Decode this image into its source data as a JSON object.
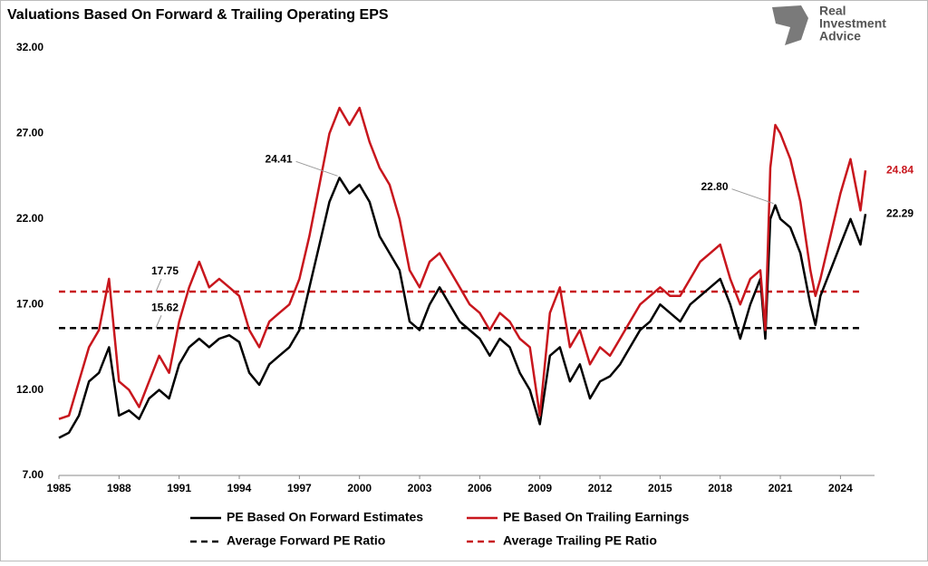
{
  "brand": [
    "Real",
    "Investment",
    "Advice"
  ],
  "chart_data": {
    "type": "line",
    "title": "Valuations  Based On Forward & Trailing Operating EPS",
    "x": [
      1985.0,
      1985.5,
      1986.0,
      1986.5,
      1987.0,
      1987.5,
      1988.0,
      1988.5,
      1989.0,
      1989.5,
      1990.0,
      1990.5,
      1991.0,
      1991.5,
      1992.0,
      1992.5,
      1993.0,
      1993.5,
      1994.0,
      1994.5,
      1995.0,
      1995.5,
      1996.0,
      1996.5,
      1997.0,
      1997.5,
      1998.0,
      1998.5,
      1999.0,
      1999.5,
      2000.0,
      2000.5,
      2001.0,
      2001.5,
      2002.0,
      2002.5,
      2003.0,
      2003.5,
      2004.0,
      2004.5,
      2005.0,
      2005.5,
      2006.0,
      2006.5,
      2007.0,
      2007.5,
      2008.0,
      2008.5,
      2009.0,
      2009.5,
      2010.0,
      2010.5,
      2011.0,
      2011.5,
      2012.0,
      2012.5,
      2013.0,
      2013.5,
      2014.0,
      2014.5,
      2015.0,
      2015.5,
      2016.0,
      2016.5,
      2017.0,
      2017.5,
      2018.0,
      2018.5,
      2019.0,
      2019.5,
      2020.0,
      2020.25,
      2020.5,
      2020.75,
      2021.0,
      2021.5,
      2022.0,
      2022.5,
      2022.75,
      2023.0,
      2023.5,
      2024.0,
      2024.5,
      2025.0,
      2025.25
    ],
    "series": [
      {
        "name": "PE Based On Forward Estimates",
        "color": "#000000",
        "values": [
          9.2,
          9.5,
          10.5,
          12.5,
          13.0,
          14.5,
          10.5,
          10.8,
          10.3,
          11.5,
          12.0,
          11.5,
          13.5,
          14.5,
          15.0,
          14.5,
          15.0,
          15.2,
          14.8,
          13.0,
          12.3,
          13.5,
          14.0,
          14.5,
          15.5,
          18.0,
          20.5,
          23.0,
          24.41,
          23.5,
          24.0,
          23.0,
          21.0,
          20.0,
          19.0,
          16.0,
          15.5,
          17.0,
          18.0,
          17.0,
          16.0,
          15.5,
          15.0,
          14.0,
          15.0,
          14.5,
          13.0,
          12.0,
          10.0,
          14.0,
          14.5,
          12.5,
          13.5,
          11.5,
          12.5,
          12.8,
          13.5,
          14.5,
          15.5,
          16.0,
          17.0,
          16.5,
          16.0,
          17.0,
          17.5,
          18.0,
          18.5,
          17.0,
          15.0,
          17.0,
          18.5,
          15.0,
          22.0,
          22.8,
          22.0,
          21.5,
          20.0,
          17.0,
          15.8,
          17.5,
          19.0,
          20.5,
          22.0,
          20.5,
          22.29
        ],
        "end_label": "22.29"
      },
      {
        "name": "PE Based On Trailing Earnings",
        "color": "#c8161d",
        "values": [
          10.3,
          10.5,
          12.5,
          14.5,
          15.5,
          18.5,
          12.5,
          12.0,
          11.0,
          12.5,
          14.0,
          13.0,
          16.0,
          18.0,
          19.5,
          18.0,
          18.5,
          18.0,
          17.5,
          15.5,
          14.5,
          16.0,
          16.5,
          17.0,
          18.5,
          21.0,
          24.0,
          27.0,
          28.5,
          27.5,
          28.5,
          26.5,
          25.0,
          24.0,
          22.0,
          19.0,
          18.0,
          19.5,
          20.0,
          19.0,
          18.0,
          17.0,
          16.5,
          15.5,
          16.5,
          16.0,
          15.0,
          14.5,
          10.5,
          16.5,
          18.0,
          14.5,
          15.5,
          13.5,
          14.5,
          14.0,
          15.0,
          16.0,
          17.0,
          17.5,
          18.0,
          17.5,
          17.5,
          18.5,
          19.5,
          20.0,
          20.5,
          18.5,
          17.0,
          18.5,
          19.0,
          15.5,
          25.0,
          27.5,
          27.0,
          25.5,
          23.0,
          19.0,
          17.5,
          18.5,
          21.0,
          23.5,
          25.5,
          22.5,
          24.84
        ],
        "end_label": "24.84"
      }
    ],
    "averages": [
      {
        "name": "Average Forward PE Ratio",
        "color": "#000000",
        "value": 15.62
      },
      {
        "name": "Average Trailing PE Ratio",
        "color": "#c8161d",
        "value": 17.75
      }
    ],
    "annotations": [
      {
        "series": 0,
        "point": 28,
        "label": "24.41"
      },
      {
        "series": 0,
        "point": 73,
        "label": "22.80"
      }
    ],
    "xlim": [
      1985,
      2025.7
    ],
    "xticks": [
      1985,
      1988,
      1991,
      1994,
      1997,
      2000,
      2003,
      2006,
      2009,
      2012,
      2015,
      2018,
      2021,
      2024
    ],
    "ylim": [
      7,
      32
    ],
    "yticks": [
      {
        "value": 7,
        "label": "7.00"
      },
      {
        "value": 12,
        "label": "12.00"
      },
      {
        "value": 17,
        "label": "17.00"
      },
      {
        "value": 22,
        "label": "22.00"
      },
      {
        "value": 27,
        "label": "27.00"
      },
      {
        "value": 32,
        "label": "32.00"
      }
    ]
  }
}
